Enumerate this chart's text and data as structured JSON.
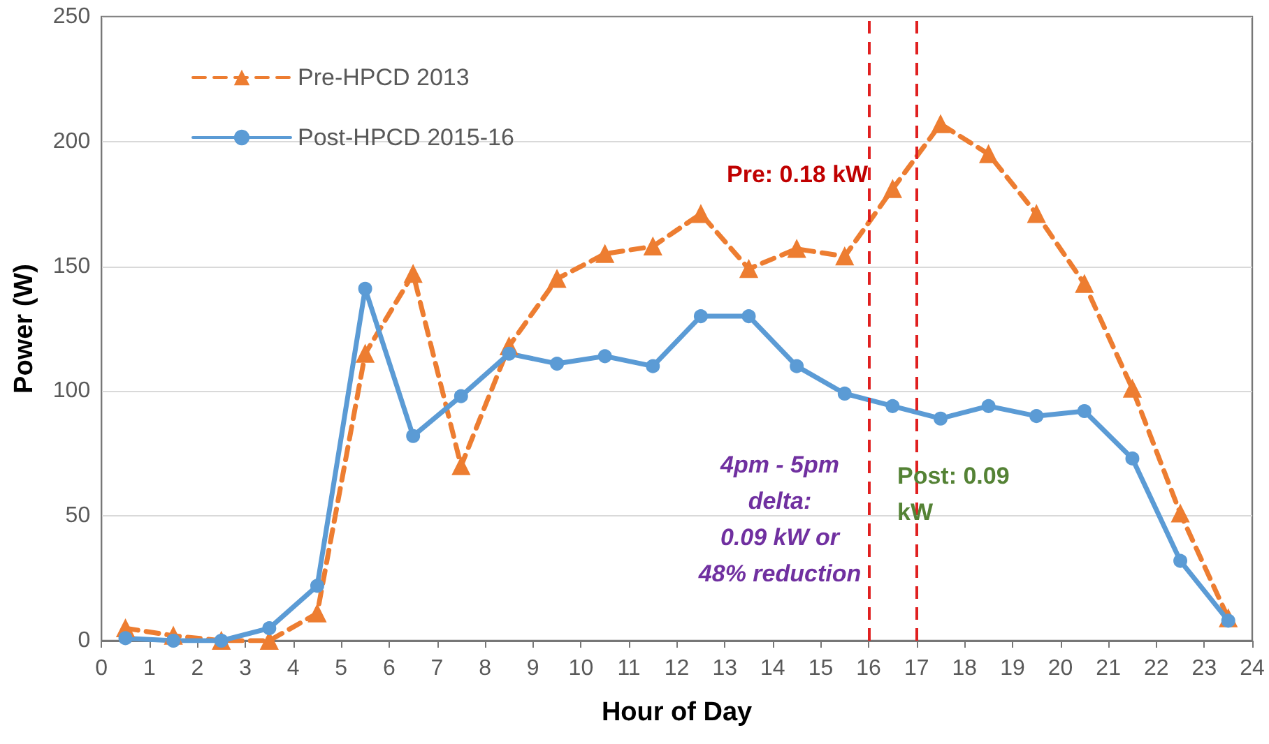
{
  "chart_data": {
    "type": "line",
    "xlabel": "Hour of Day",
    "ylabel": "Power (W)",
    "x": [
      0.5,
      1.5,
      2.5,
      3.5,
      4.5,
      5.5,
      6.5,
      7.5,
      8.5,
      9.5,
      10.5,
      11.5,
      12.5,
      13.5,
      14.5,
      15.5,
      16.5,
      17.5,
      18.5,
      19.5,
      20.5,
      21.5,
      22.5,
      23.5
    ],
    "series": [
      {
        "name": "Pre-HPCD 2013",
        "color": "#ed7d31",
        "marker": "triangle",
        "line_style": "dashed",
        "values": [
          5,
          2,
          0,
          0,
          11,
          115,
          147,
          70,
          118,
          145,
          155,
          158,
          171,
          149,
          157,
          154,
          181,
          207,
          195,
          171,
          143,
          101,
          51,
          9
        ]
      },
      {
        "name": "Post-HPCD 2015-16",
        "color": "#5b9bd5",
        "marker": "circle",
        "line_style": "solid",
        "values": [
          1,
          0,
          0,
          5,
          22,
          141,
          82,
          98,
          115,
          111,
          114,
          110,
          130,
          130,
          110,
          99,
          94,
          89,
          94,
          90,
          92,
          73,
          32,
          8
        ]
      }
    ],
    "xlim": [
      0,
      24
    ],
    "xticks": [
      0,
      1,
      2,
      3,
      4,
      5,
      6,
      7,
      8,
      9,
      10,
      11,
      12,
      13,
      14,
      15,
      16,
      17,
      18,
      19,
      20,
      21,
      22,
      23,
      24
    ],
    "ylim": [
      0,
      250
    ],
    "yticks": [
      0,
      50,
      100,
      150,
      200,
      250
    ],
    "grid": "y",
    "legend": "top left",
    "ref_lines": [
      {
        "axis": "x",
        "value": 16,
        "color": "#e02020",
        "line_style": "dashed"
      },
      {
        "axis": "x",
        "value": 17,
        "color": "#e02020",
        "line_style": "dashed"
      }
    ],
    "annotations": [
      "Pre: 0.18 kW",
      "Post: 0.09\nkW",
      "4pm - 5pm\ndelta:\n0.09 kW or\n48% reduction"
    ]
  }
}
